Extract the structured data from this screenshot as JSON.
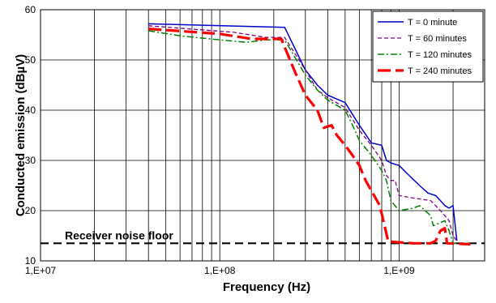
{
  "chart_data": {
    "type": "line",
    "xlabel": "Frequency (Hz)",
    "ylabel": "Conducted emission (dBµV)",
    "x_scale": "log",
    "xlim": [
      10000000,
      3000000000
    ],
    "ylim": [
      10,
      60
    ],
    "x_ticks": [
      {
        "value": 10000000,
        "label": "1,E+07"
      },
      {
        "value": 100000000,
        "label": "1,E+08"
      },
      {
        "value": 1000000000,
        "label": "1,E+09"
      }
    ],
    "y_ticks": [
      10,
      20,
      30,
      40,
      50,
      60
    ],
    "grid": {
      "vertical_log_minor": true,
      "horizontal": true
    },
    "legend_position": "top-right",
    "series": [
      {
        "name": "T = 0 minute",
        "color": "#0000cc",
        "dash": "solid",
        "points": [
          [
            40000000,
            57.2
          ],
          [
            230000000,
            56.5
          ],
          [
            300000000,
            48
          ],
          [
            350000000,
            45
          ],
          [
            400000000,
            43
          ],
          [
            500000000,
            41.5
          ],
          [
            600000000,
            37
          ],
          [
            700000000,
            33.5
          ],
          [
            800000000,
            33
          ],
          [
            850000000,
            30
          ],
          [
            900000000,
            29.5
          ],
          [
            1000000000,
            29
          ],
          [
            1100000000,
            27.5
          ],
          [
            1300000000,
            25
          ],
          [
            1450000000,
            23.5
          ],
          [
            1600000000,
            23
          ],
          [
            1700000000,
            22
          ],
          [
            1750000000,
            21.5
          ],
          [
            1800000000,
            21
          ],
          [
            1900000000,
            20.5
          ],
          [
            2000000000,
            21
          ],
          [
            2100000000,
            14
          ]
        ]
      },
      {
        "name": "T = 60 minutes",
        "color": "#800080",
        "dash": "dashed",
        "points": [
          [
            40000000,
            56.8
          ],
          [
            120000000,
            55.5
          ],
          [
            180000000,
            54.5
          ],
          [
            230000000,
            54.5
          ],
          [
            300000000,
            48
          ],
          [
            350000000,
            44
          ],
          [
            400000000,
            42.5
          ],
          [
            500000000,
            40.5
          ],
          [
            600000000,
            36
          ],
          [
            700000000,
            33
          ],
          [
            800000000,
            30
          ],
          [
            850000000,
            27
          ],
          [
            900000000,
            26
          ],
          [
            950000000,
            26
          ],
          [
            1000000000,
            23
          ],
          [
            1200000000,
            22.5
          ],
          [
            1500000000,
            22
          ],
          [
            1700000000,
            20
          ],
          [
            1800000000,
            19
          ],
          [
            1900000000,
            18
          ],
          [
            2000000000,
            15
          ],
          [
            2100000000,
            14
          ]
        ]
      },
      {
        "name": "T = 120 minutes",
        "color": "#008000",
        "dash": "dashdot",
        "points": [
          [
            40000000,
            55.8
          ],
          [
            60000000,
            54.8
          ],
          [
            100000000,
            54
          ],
          [
            140000000,
            53.5
          ],
          [
            180000000,
            54
          ],
          [
            230000000,
            54
          ],
          [
            300000000,
            47
          ],
          [
            350000000,
            44
          ],
          [
            400000000,
            42
          ],
          [
            500000000,
            40
          ],
          [
            550000000,
            37
          ],
          [
            600000000,
            34
          ],
          [
            700000000,
            31
          ],
          [
            800000000,
            28
          ],
          [
            850000000,
            26
          ],
          [
            900000000,
            22
          ],
          [
            1000000000,
            20
          ],
          [
            1200000000,
            20.5
          ],
          [
            1300000000,
            21
          ],
          [
            1500000000,
            19
          ],
          [
            1550000000,
            17
          ],
          [
            1800000000,
            18
          ],
          [
            1900000000,
            16
          ],
          [
            2000000000,
            13.5
          ],
          [
            2500000000,
            13.5
          ]
        ]
      },
      {
        "name": "T = 240 minutes",
        "color": "#ff0000",
        "dash": "longdash",
        "points": [
          [
            40000000,
            56.2
          ],
          [
            100000000,
            55.2
          ],
          [
            150000000,
            54.2
          ],
          [
            220000000,
            54.2
          ],
          [
            260000000,
            48
          ],
          [
            300000000,
            43
          ],
          [
            350000000,
            40
          ],
          [
            380000000,
            36.5
          ],
          [
            420000000,
            37
          ],
          [
            450000000,
            35
          ],
          [
            500000000,
            33
          ],
          [
            550000000,
            31
          ],
          [
            600000000,
            29
          ],
          [
            650000000,
            26
          ],
          [
            700000000,
            24
          ],
          [
            780000000,
            21
          ],
          [
            830000000,
            17
          ],
          [
            870000000,
            13.8
          ],
          [
            900000000,
            13.8
          ],
          [
            1200000000,
            13.5
          ],
          [
            1500000000,
            13.5
          ],
          [
            1600000000,
            14
          ],
          [
            1700000000,
            16
          ],
          [
            1800000000,
            16.5
          ],
          [
            1850000000,
            13.5
          ],
          [
            2500000000,
            13.3
          ]
        ]
      }
    ],
    "reference_lines": [
      {
        "label": "Receiver noise floor",
        "y": 13.5,
        "color": "#000000",
        "dash": "dashed"
      }
    ]
  }
}
